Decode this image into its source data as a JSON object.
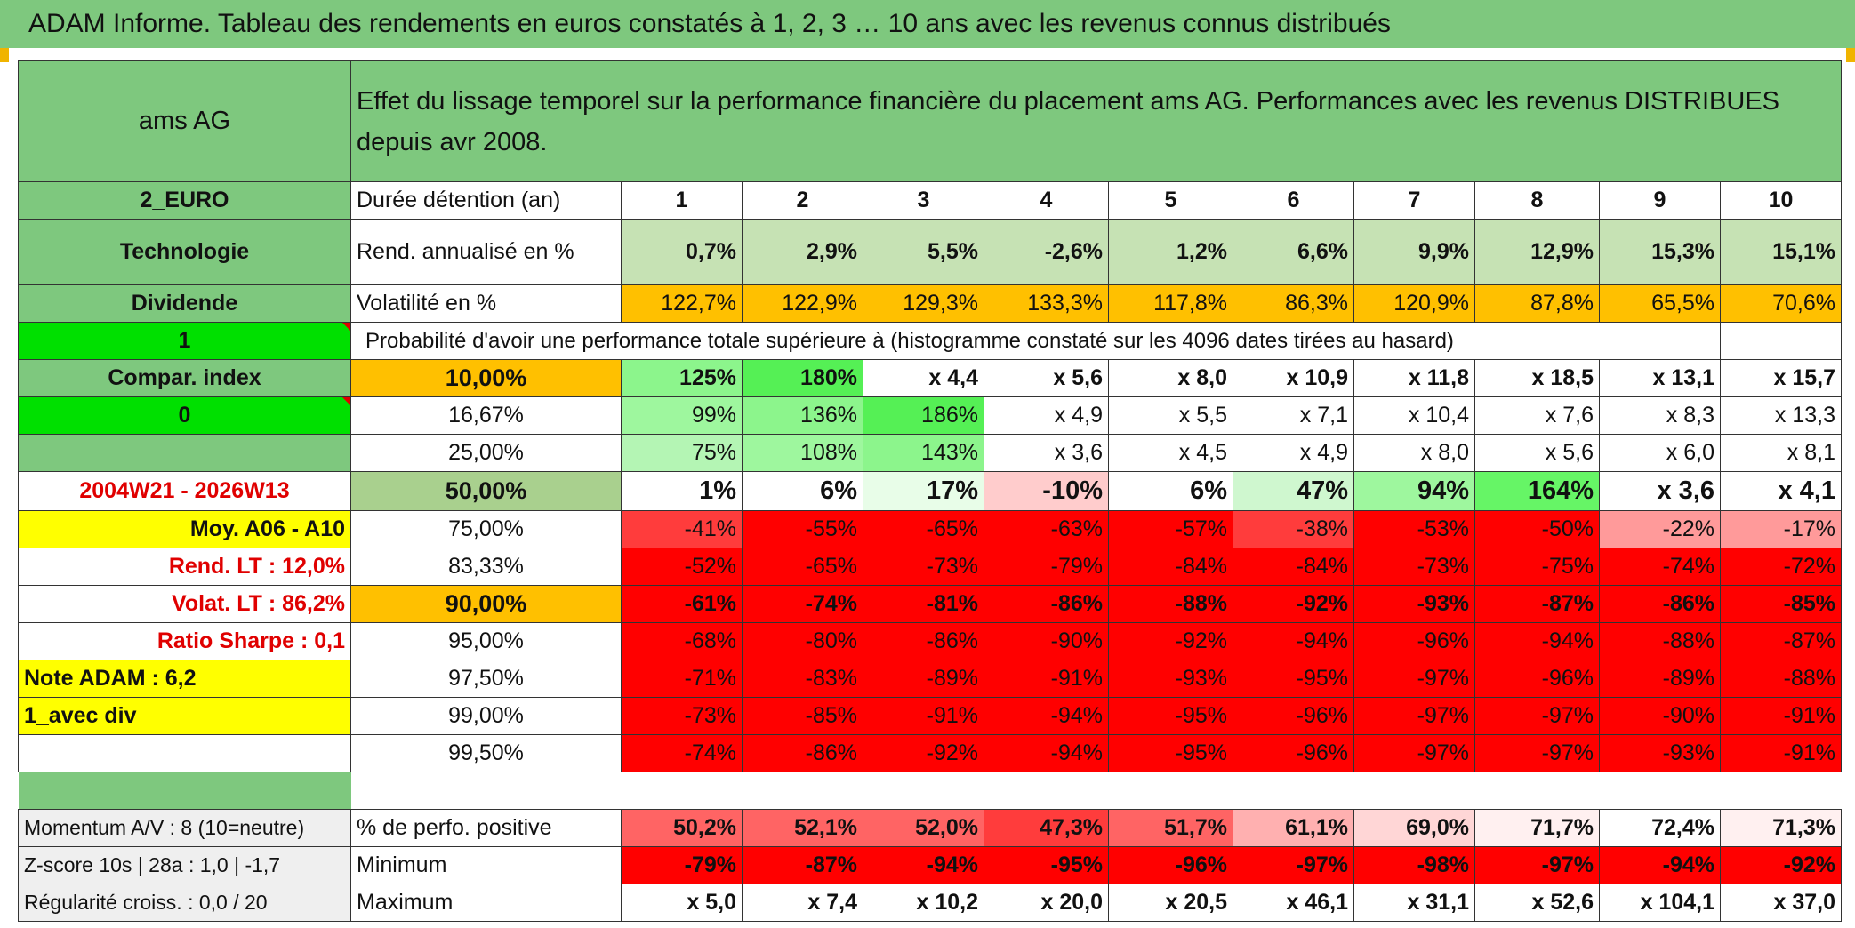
{
  "title": "ADAM Informe. Tableau des rendements en euros constatés à 1, 2, 3 … 10 ans avec les revenus connus distribués",
  "header": {
    "asset": "ams AG",
    "description": "Effet du lissage temporel sur la performance financière du placement ams AG. Performances avec les revenus DISTRIBUES depuis avr 2008."
  },
  "side": {
    "currency": "2_EURO",
    "sector": "Technologie",
    "income_type": "Dividende",
    "flag_1": "1",
    "compar_index": "Compar. index",
    "flag_0": "0",
    "period": "2004W21 - 2026W13",
    "avg_label": "Moy. A06 - A10",
    "rend_lt": "Rend. LT :    12,0%",
    "volat_lt": "Volat. LT :   86,2%",
    "sharpe": "Ratio Sharpe :    0,1",
    "note": "Note ADAM : 6,2",
    "div_mode": "1_avec div",
    "momentum": "Momentum A/V : 8 (10=neutre)",
    "zscore": "Z-score 10s | 28a : 1,0 | -1,7",
    "regularity": "Régularité croiss. : 0,0 / 20"
  },
  "labels": {
    "duration": "Durée détention (an)",
    "rendement": "Rend. annualisé en %",
    "volatility": "Volatilité en %",
    "probability": "Probabilité d'avoir une performance totale supérieure à (histogramme constaté sur les 4096 dates tirées au hasard)",
    "positive": "% de perfo. positive",
    "minimum": "Minimum",
    "maximum": "Maximum"
  },
  "years": [
    "1",
    "2",
    "3",
    "4",
    "5",
    "6",
    "7",
    "8",
    "9",
    "10"
  ],
  "rendement": [
    "0,7%",
    "2,9%",
    "5,5%",
    "-2,6%",
    "1,2%",
    "6,6%",
    "9,9%",
    "12,9%",
    "15,3%",
    "15,1%"
  ],
  "volatility": [
    "122,7%",
    "122,9%",
    "129,3%",
    "133,3%",
    "117,8%",
    "86,3%",
    "120,9%",
    "87,8%",
    "65,5%",
    "70,6%"
  ],
  "quantiles": [
    {
      "p": "10,00%",
      "values": [
        "125%",
        "180%",
        "x 4,4",
        "x 5,6",
        "x 8,0",
        "x 10,9",
        "x 11,8",
        "x 18,5",
        "x 13,1",
        "x 15,7"
      ]
    },
    {
      "p": "16,67%",
      "values": [
        "99%",
        "136%",
        "186%",
        "x 4,9",
        "x 5,5",
        "x 7,1",
        "x 10,4",
        "x 7,6",
        "x 8,3",
        "x 13,3"
      ]
    },
    {
      "p": "25,00%",
      "values": [
        "75%",
        "108%",
        "143%",
        "x 3,6",
        "x 4,5",
        "x 4,9",
        "x 8,0",
        "x 5,6",
        "x 6,0",
        "x 8,1"
      ]
    },
    {
      "p": "50,00%",
      "values": [
        "1%",
        "6%",
        "17%",
        "-10%",
        "6%",
        "47%",
        "94%",
        "164%",
        "x 3,6",
        "x 4,1"
      ]
    },
    {
      "p": "75,00%",
      "values": [
        "-41%",
        "-55%",
        "-65%",
        "-63%",
        "-57%",
        "-38%",
        "-53%",
        "-50%",
        "-22%",
        "-17%"
      ]
    },
    {
      "p": "83,33%",
      "values": [
        "-52%",
        "-65%",
        "-73%",
        "-79%",
        "-84%",
        "-84%",
        "-73%",
        "-75%",
        "-74%",
        "-72%"
      ]
    },
    {
      "p": "90,00%",
      "values": [
        "-61%",
        "-74%",
        "-81%",
        "-86%",
        "-88%",
        "-92%",
        "-93%",
        "-87%",
        "-86%",
        "-85%"
      ]
    },
    {
      "p": "95,00%",
      "values": [
        "-68%",
        "-80%",
        "-86%",
        "-90%",
        "-92%",
        "-94%",
        "-96%",
        "-94%",
        "-88%",
        "-87%"
      ]
    },
    {
      "p": "97,50%",
      "values": [
        "-71%",
        "-83%",
        "-89%",
        "-91%",
        "-93%",
        "-95%",
        "-97%",
        "-96%",
        "-89%",
        "-88%"
      ]
    },
    {
      "p": "99,00%",
      "values": [
        "-73%",
        "-85%",
        "-91%",
        "-94%",
        "-95%",
        "-96%",
        "-97%",
        "-97%",
        "-90%",
        "-91%"
      ]
    },
    {
      "p": "99,50%",
      "values": [
        "-74%",
        "-86%",
        "-92%",
        "-94%",
        "-95%",
        "-96%",
        "-97%",
        "-97%",
        "-93%",
        "-91%"
      ]
    }
  ],
  "positive": [
    "50,2%",
    "52,1%",
    "52,0%",
    "47,3%",
    "51,7%",
    "61,1%",
    "69,0%",
    "71,7%",
    "72,4%",
    "71,3%"
  ],
  "minimum": [
    "-79%",
    "-87%",
    "-94%",
    "-95%",
    "-96%",
    "-97%",
    "-98%",
    "-97%",
    "-94%",
    "-92%"
  ],
  "maximum": [
    "x 5,0",
    "x 7,4",
    "x 10,2",
    "x 20,0",
    "x 20,5",
    "x 46,1",
    "x 31,1",
    "x 52,6",
    "x 104,1",
    "x 37,0"
  ],
  "colors": {
    "header_green": "#7ec87e",
    "bright_green": "#00e000",
    "highlight_yellow": "#ffff00",
    "highlight_orange": "#ffc000",
    "loss_red": "#ff0000",
    "label_red": "#e00000"
  }
}
